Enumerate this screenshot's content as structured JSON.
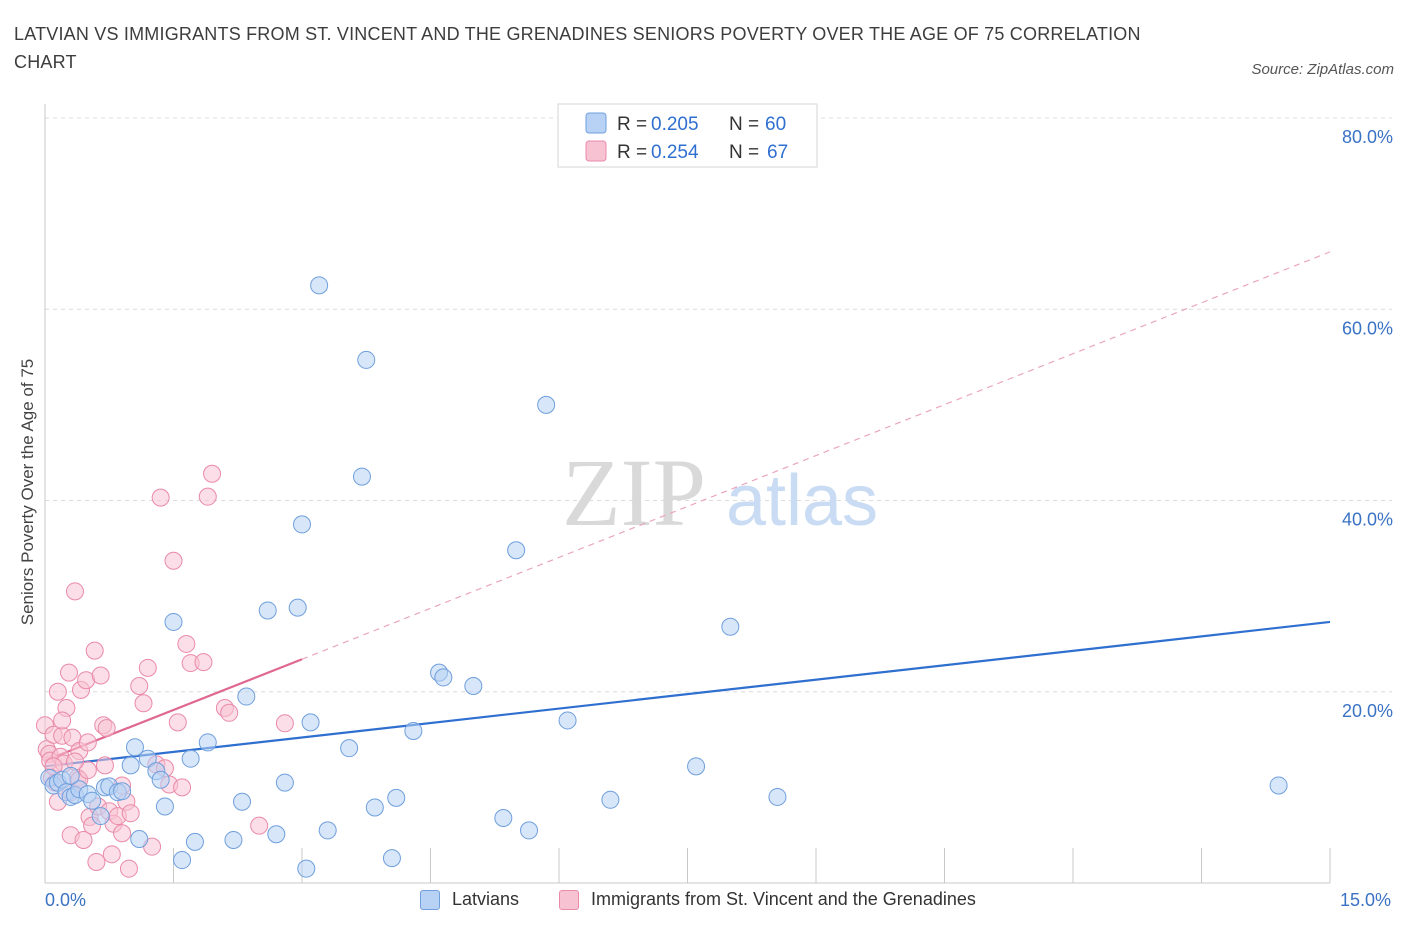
{
  "title": "LATVIAN VS IMMIGRANTS FROM ST. VINCENT AND THE GRENADINES SENIORS POVERTY OVER THE AGE OF 75 CORRELATION CHART",
  "source": "Source: ZipAtlas.com",
  "watermark": {
    "zip": "ZIP",
    "atlas": "atlas"
  },
  "legend_top": [
    {
      "r_label": "R = ",
      "r_value": "0.205",
      "n_label": "N = ",
      "n_value": "60"
    },
    {
      "r_label": "R = ",
      "r_value": "0.254",
      "n_label": "N = ",
      "n_value": "67"
    }
  ],
  "legend_bottom": [
    "Latvians",
    "Immigrants from St. Vincent and the Grenadines"
  ],
  "colors": {
    "blue_fill": "#b7d2f4",
    "blue_stroke": "#6f9fdc",
    "blue_line": "#2f6fd0",
    "pink_fill": "#f7c3d3",
    "pink_stroke": "#ea8aa9",
    "pink_line": "#e06890",
    "tick_label": "#3a72c4",
    "grid": "#dcdcdc"
  },
  "chart_data": {
    "type": "scatter",
    "title": "LATVIAN VS IMMIGRANTS FROM ST. VINCENT AND THE GRENADINES SENIORS POVERTY OVER THE AGE OF 75 CORRELATION CHART",
    "xlabel": "",
    "ylabel": "Seniors Poverty Over the Age of 75",
    "xlim": [
      0,
      15
    ],
    "ylim": [
      0,
      80
    ],
    "x_tick_labels": [
      "0.0%",
      "15.0%"
    ],
    "y_ticks": [
      20,
      40,
      60,
      80
    ],
    "y_tick_labels": [
      "20.0%",
      "40.0%",
      "60.0%",
      "80.0%"
    ],
    "grid": true,
    "legend_position": "top-center",
    "series": [
      {
        "name": "Latvians",
        "R": 0.205,
        "N": 60,
        "trend": {
          "x": [
            0,
            15
          ],
          "y": [
            12.2,
            27.3
          ],
          "style": "solid"
        },
        "points": [
          [
            0.05,
            11.0
          ],
          [
            0.1,
            10.2
          ],
          [
            0.15,
            10.5
          ],
          [
            0.2,
            10.8
          ],
          [
            0.25,
            9.5
          ],
          [
            0.3,
            9.0
          ],
          [
            0.35,
            9.2
          ],
          [
            0.4,
            9.8
          ],
          [
            0.5,
            9.3
          ],
          [
            0.55,
            8.6
          ],
          [
            0.65,
            7.0
          ],
          [
            0.7,
            10.0
          ],
          [
            0.75,
            10.1
          ],
          [
            0.85,
            9.5
          ],
          [
            0.9,
            9.6
          ],
          [
            1.0,
            12.3
          ],
          [
            1.05,
            14.2
          ],
          [
            1.1,
            4.6
          ],
          [
            1.2,
            13.0
          ],
          [
            1.3,
            11.7
          ],
          [
            1.35,
            10.8
          ],
          [
            1.4,
            8.0
          ],
          [
            1.5,
            27.3
          ],
          [
            1.6,
            2.4
          ],
          [
            1.7,
            13.0
          ],
          [
            1.75,
            4.3
          ],
          [
            1.9,
            14.7
          ],
          [
            2.2,
            4.5
          ],
          [
            2.3,
            8.5
          ],
          [
            2.35,
            19.5
          ],
          [
            2.6,
            28.5
          ],
          [
            2.7,
            5.1
          ],
          [
            2.8,
            10.5
          ],
          [
            2.95,
            28.8
          ],
          [
            3.0,
            37.5
          ],
          [
            3.05,
            1.5
          ],
          [
            3.1,
            16.8
          ],
          [
            3.3,
            5.5
          ],
          [
            3.55,
            14.1
          ],
          [
            3.7,
            42.5
          ],
          [
            3.75,
            54.7
          ],
          [
            3.85,
            7.9
          ],
          [
            4.05,
            2.6
          ],
          [
            4.1,
            8.9
          ],
          [
            4.3,
            15.9
          ],
          [
            4.6,
            22.0
          ],
          [
            4.65,
            21.5
          ],
          [
            5.0,
            20.6
          ],
          [
            5.35,
            6.8
          ],
          [
            5.5,
            34.8
          ],
          [
            5.65,
            5.5
          ],
          [
            5.85,
            50.0
          ],
          [
            6.1,
            17.0
          ],
          [
            6.6,
            8.7
          ],
          [
            3.2,
            62.5
          ],
          [
            7.6,
            12.2
          ],
          [
            8.0,
            26.8
          ],
          [
            8.55,
            9.0
          ],
          [
            14.4,
            10.2
          ],
          [
            0.3,
            11.2
          ]
        ]
      },
      {
        "name": "Immigrants from St. Vincent and the Grenadines",
        "R": 0.254,
        "N": 67,
        "trend": {
          "x": [
            0,
            3.0
          ],
          "y": [
            12.8,
            23.4
          ],
          "style": "solid",
          "dashed_extension": {
            "x": [
              3.0,
              15
            ],
            "y": [
              23.4,
              66.0
            ]
          }
        },
        "points": [
          [
            0.0,
            16.5
          ],
          [
            0.02,
            14.0
          ],
          [
            0.05,
            13.5
          ],
          [
            0.06,
            12.8
          ],
          [
            0.08,
            11.0
          ],
          [
            0.1,
            15.5
          ],
          [
            0.12,
            10.5
          ],
          [
            0.15,
            20.0
          ],
          [
            0.18,
            13.2
          ],
          [
            0.2,
            15.4
          ],
          [
            0.22,
            12.5
          ],
          [
            0.25,
            18.3
          ],
          [
            0.28,
            22.0
          ],
          [
            0.3,
            5.0
          ],
          [
            0.32,
            15.2
          ],
          [
            0.35,
            30.5
          ],
          [
            0.38,
            11.0
          ],
          [
            0.4,
            13.8
          ],
          [
            0.42,
            20.2
          ],
          [
            0.45,
            4.5
          ],
          [
            0.48,
            21.2
          ],
          [
            0.5,
            14.7
          ],
          [
            0.52,
            6.9
          ],
          [
            0.55,
            6.0
          ],
          [
            0.58,
            24.3
          ],
          [
            0.6,
            2.2
          ],
          [
            0.62,
            8.0
          ],
          [
            0.65,
            21.7
          ],
          [
            0.68,
            16.5
          ],
          [
            0.7,
            12.3
          ],
          [
            0.72,
            16.2
          ],
          [
            0.75,
            7.5
          ],
          [
            0.78,
            3.0
          ],
          [
            0.8,
            6.2
          ],
          [
            0.85,
            7.0
          ],
          [
            0.9,
            5.2
          ],
          [
            0.95,
            8.5
          ],
          [
            0.98,
            1.5
          ],
          [
            1.0,
            7.3
          ],
          [
            1.1,
            20.6
          ],
          [
            1.15,
            18.8
          ],
          [
            1.2,
            22.5
          ],
          [
            1.25,
            3.8
          ],
          [
            1.3,
            12.4
          ],
          [
            1.35,
            40.3
          ],
          [
            1.4,
            12.0
          ],
          [
            1.45,
            10.3
          ],
          [
            1.5,
            33.7
          ],
          [
            1.55,
            16.8
          ],
          [
            1.6,
            10.0
          ],
          [
            1.65,
            25.0
          ],
          [
            1.7,
            23.0
          ],
          [
            1.85,
            23.1
          ],
          [
            1.9,
            40.4
          ],
          [
            1.95,
            42.8
          ],
          [
            2.1,
            18.3
          ],
          [
            2.15,
            17.8
          ],
          [
            2.5,
            6.0
          ],
          [
            2.8,
            16.7
          ],
          [
            0.1,
            12.2
          ],
          [
            0.15,
            8.5
          ],
          [
            0.3,
            9.5
          ],
          [
            0.4,
            10.8
          ],
          [
            0.5,
            11.8
          ],
          [
            0.2,
            17.0
          ],
          [
            0.35,
            12.7
          ],
          [
            0.9,
            10.2
          ]
        ]
      }
    ]
  }
}
